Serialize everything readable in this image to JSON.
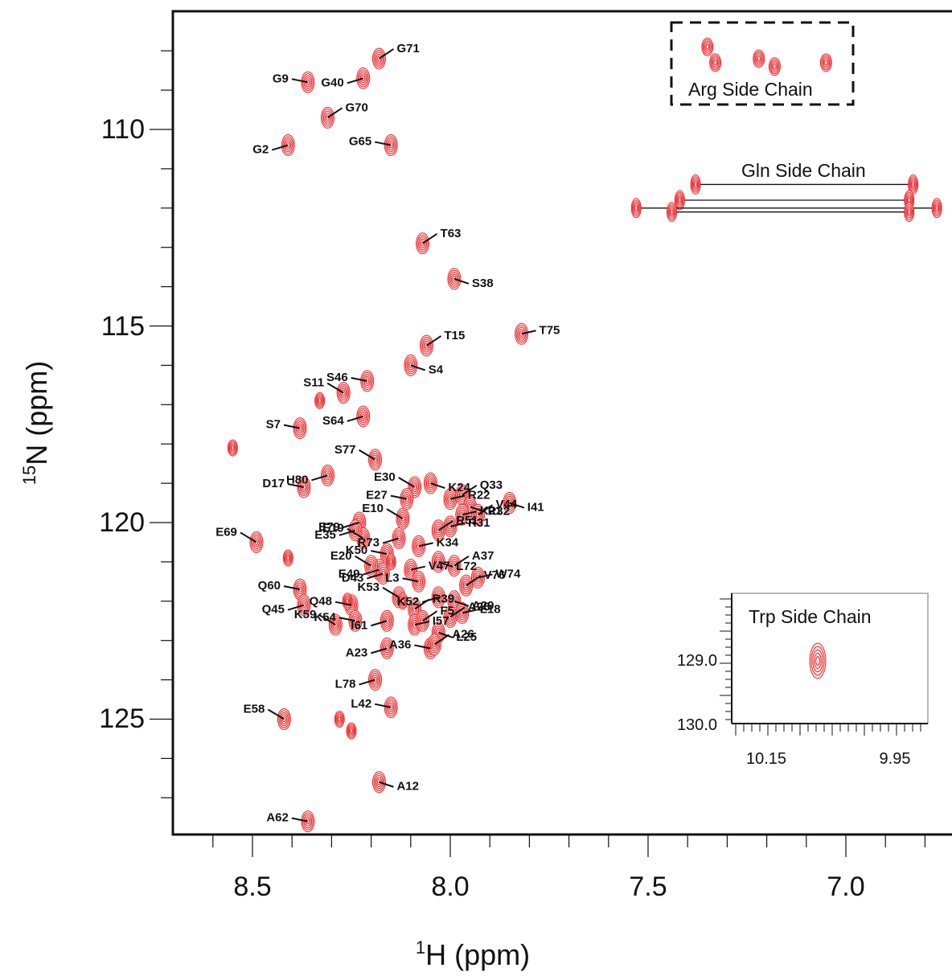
{
  "chart_data": {
    "type": "scatter",
    "xlabel": {
      "sup": "1",
      "main": "H  (ppm)"
    },
    "ylabel": {
      "sup": "15",
      "main": "N  (ppm)"
    },
    "xlim": [
      8.83,
      6.76
    ],
    "ylim": [
      108.0,
      128.0
    ],
    "x_ticks": [
      "8.5",
      "8.0",
      "7.5",
      "7.0"
    ],
    "y_ticks": [
      "110",
      "115",
      "120",
      "125"
    ],
    "peak_color": "#e8262a",
    "peaks": [
      {
        "label": "G71",
        "x": 8.18,
        "y": 108.2
      },
      {
        "label": "G40",
        "x": 8.22,
        "y": 108.7
      },
      {
        "label": "G9",
        "x": 8.36,
        "y": 108.8
      },
      {
        "label": "G70",
        "x": 8.31,
        "y": 109.7
      },
      {
        "label": "G2",
        "x": 8.41,
        "y": 110.4
      },
      {
        "label": "G65",
        "x": 8.15,
        "y": 110.4
      },
      {
        "label": "T63",
        "x": 8.07,
        "y": 112.9
      },
      {
        "label": "S38",
        "x": 7.99,
        "y": 113.8
      },
      {
        "label": "T75",
        "x": 7.82,
        "y": 115.2
      },
      {
        "label": "T15",
        "x": 8.06,
        "y": 115.5
      },
      {
        "label": "S4",
        "x": 8.1,
        "y": 116.0
      },
      {
        "label": "S46",
        "x": 8.21,
        "y": 116.4
      },
      {
        "label": "S11",
        "x": 8.27,
        "y": 116.7
      },
      {
        "label": "S64",
        "x": 8.22,
        "y": 117.3
      },
      {
        "label": "S7",
        "x": 8.38,
        "y": 117.6
      },
      {
        "label": "S77",
        "x": 8.19,
        "y": 118.4
      },
      {
        "label": "H80",
        "x": 8.31,
        "y": 118.8
      },
      {
        "label": "D17",
        "x": 8.37,
        "y": 119.1
      },
      {
        "label": "E30",
        "x": 8.09,
        "y": 119.1
      },
      {
        "label": "K24",
        "x": 8.05,
        "y": 119.0
      },
      {
        "label": "R22",
        "x": 8.0,
        "y": 119.4
      },
      {
        "label": "Q33",
        "x": 7.97,
        "y": 119.3
      },
      {
        "label": "R32",
        "x": 7.95,
        "y": 119.6
      },
      {
        "label": "K21",
        "x": 7.97,
        "y": 119.8
      },
      {
        "label": "V44",
        "x": 7.93,
        "y": 119.8
      },
      {
        "label": "I41",
        "x": 7.85,
        "y": 119.5
      },
      {
        "label": "E27",
        "x": 8.11,
        "y": 119.4
      },
      {
        "label": "E10",
        "x": 8.12,
        "y": 119.9
      },
      {
        "label": "E79",
        "x": 8.23,
        "y": 120.0
      },
      {
        "label": "R31",
        "x": 8.0,
        "y": 120.1
      },
      {
        "label": "E19",
        "x": 8.22,
        "y": 120.4
      },
      {
        "label": "R73",
        "x": 8.13,
        "y": 120.4
      },
      {
        "label": "K34",
        "x": 8.08,
        "y": 120.6
      },
      {
        "label": "R51",
        "x": 8.03,
        "y": 120.2
      },
      {
        "label": "E35",
        "x": 8.24,
        "y": 120.2
      },
      {
        "label": "K50",
        "x": 8.16,
        "y": 120.8
      },
      {
        "label": "E69",
        "x": 8.49,
        "y": 120.5
      },
      {
        "label": "L72",
        "x": 8.03,
        "y": 121.0
      },
      {
        "label": "V47",
        "x": 8.1,
        "y": 121.2
      },
      {
        "label": "A37",
        "x": 7.99,
        "y": 121.1
      },
      {
        "label": "E49",
        "x": 8.18,
        "y": 121.2
      },
      {
        "label": "W74",
        "x": 7.93,
        "y": 121.4
      },
      {
        "label": "E20",
        "x": 8.2,
        "y": 121.1
      },
      {
        "label": "D43",
        "x": 8.17,
        "y": 121.3
      },
      {
        "label": "L3",
        "x": 8.08,
        "y": 121.5
      },
      {
        "label": "V76",
        "x": 7.96,
        "y": 121.6
      },
      {
        "label": "K52",
        "x": 8.03,
        "y": 121.9
      },
      {
        "label": "Q60",
        "x": 8.38,
        "y": 121.7
      },
      {
        "label": "K53",
        "x": 8.13,
        "y": 121.9
      },
      {
        "label": "A29",
        "x": 7.99,
        "y": 122.0
      },
      {
        "label": "Q48",
        "x": 8.25,
        "y": 122.1
      },
      {
        "label": "R39",
        "x": 8.09,
        "y": 122.2
      },
      {
        "label": "Q45",
        "x": 8.37,
        "y": 122.1
      },
      {
        "label": "L18",
        "x": 7.97,
        "y": 122.3
      },
      {
        "label": "K59",
        "x": 8.29,
        "y": 122.6
      },
      {
        "label": "I61",
        "x": 8.16,
        "y": 122.5
      },
      {
        "label": "I57",
        "x": 8.09,
        "y": 122.6
      },
      {
        "label": "A28",
        "x": 8.0,
        "y": 122.4
      },
      {
        "label": "L25",
        "x": 8.03,
        "y": 122.8
      },
      {
        "label": "K54",
        "x": 8.24,
        "y": 122.5
      },
      {
        "label": "F5",
        "x": 8.07,
        "y": 122.5
      },
      {
        "label": "A23",
        "x": 8.16,
        "y": 123.2
      },
      {
        "label": "A36",
        "x": 8.05,
        "y": 123.2
      },
      {
        "label": "A26",
        "x": 8.04,
        "y": 123.1
      },
      {
        "label": "L78",
        "x": 8.19,
        "y": 124.0
      },
      {
        "label": "L42",
        "x": 8.15,
        "y": 124.7
      },
      {
        "label": "E58",
        "x": 8.42,
        "y": 125.0
      },
      {
        "label": "A12",
        "x": 8.18,
        "y": 126.6
      },
      {
        "label": "A62",
        "x": 8.36,
        "y": 127.6
      }
    ],
    "unlabeled_peaks": [
      {
        "x": 8.28,
        "y": 125.0
      },
      {
        "x": 8.25,
        "y": 125.3
      },
      {
        "x": 8.55,
        "y": 118.1
      },
      {
        "x": 8.33,
        "y": 116.9
      },
      {
        "x": 8.41,
        "y": 120.9
      },
      {
        "x": 8.26,
        "y": 122.0
      },
      {
        "x": 8.15,
        "y": 121.0
      },
      {
        "x": 8.12,
        "y": 122.0
      }
    ],
    "arg_side_chain": {
      "label": "Arg Side Chain",
      "peaks": [
        {
          "x": 7.35,
          "y": 107.9
        },
        {
          "x": 7.33,
          "y": 108.3
        },
        {
          "x": 7.22,
          "y": 108.2
        },
        {
          "x": 7.18,
          "y": 108.4
        },
        {
          "x": 7.05,
          "y": 108.3
        }
      ]
    },
    "gln_side_chain": {
      "label": "Gln Side Chain",
      "pairs": [
        {
          "x1": 7.38,
          "x2": 6.83,
          "y": 111.4
        },
        {
          "x1": 7.42,
          "x2": 6.84,
          "y": 111.8
        },
        {
          "x1": 7.53,
          "x2": 6.77,
          "y": 112.0
        },
        {
          "x1": 7.44,
          "x2": 6.84,
          "y": 112.1
        }
      ]
    },
    "trp_inset": {
      "label": "Trp Side Chain",
      "x_ticks": [
        "10.15",
        "9.95"
      ],
      "y_ticks": [
        "129.0",
        "130.0"
      ],
      "xlim": [
        10.2,
        9.92
      ],
      "ylim": [
        128.2,
        130.0
      ],
      "peak": {
        "x": 10.07,
        "y": 129.0
      }
    }
  }
}
